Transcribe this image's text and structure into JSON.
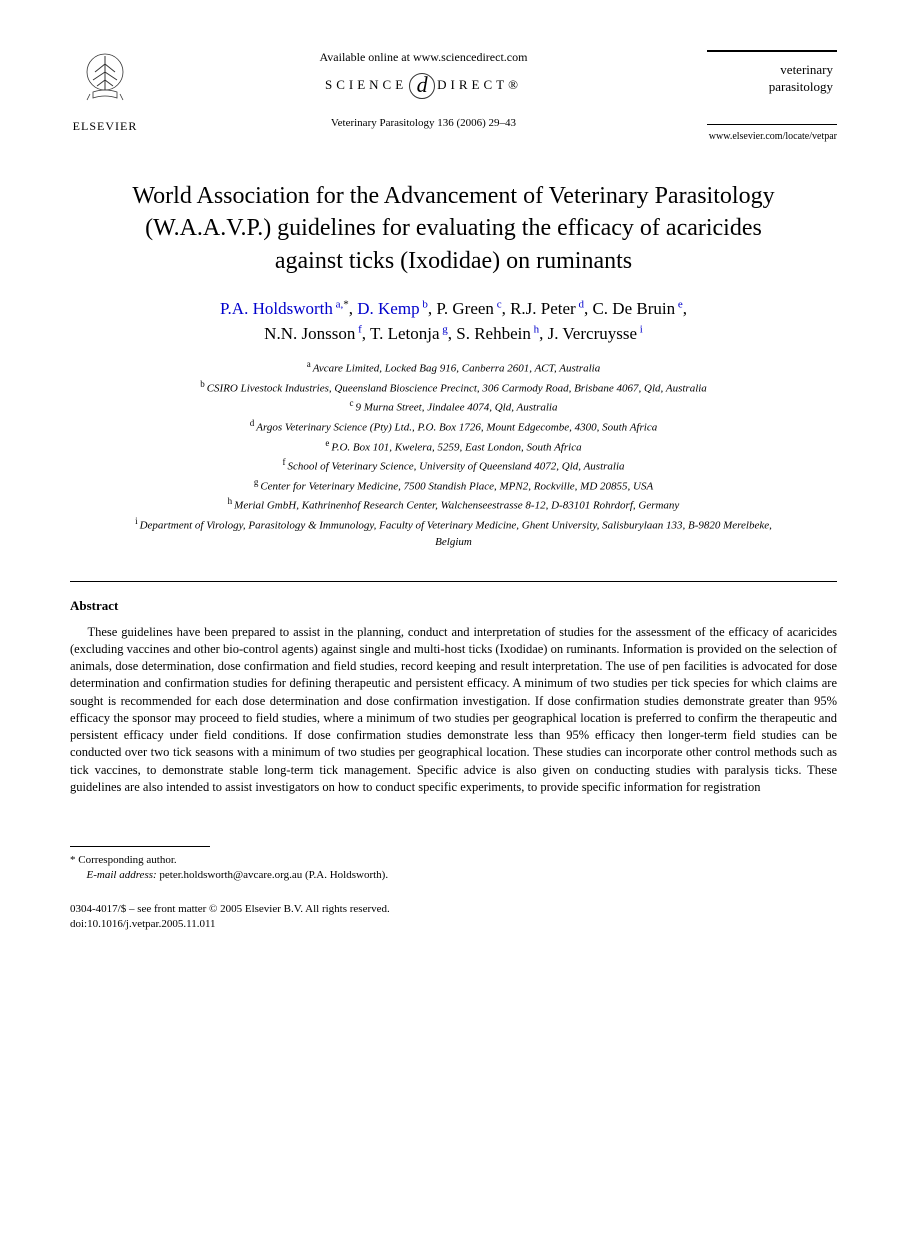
{
  "header": {
    "publisher_name": "ELSEVIER",
    "available_online": "Available online at www.sciencedirect.com",
    "science_direct_left": "SCIENCE",
    "science_direct_right": "DIRECT®",
    "citation": "Veterinary Parasitology 136 (2006) 29–43",
    "journal_name_line1": "veterinary",
    "journal_name_line2": "parasitology",
    "journal_url": "www.elsevier.com/locate/vetpar"
  },
  "title": "World Association for the Advancement of Veterinary Parasitology (W.A.A.V.P.) guidelines for evaluating the efficacy of acaricides against ticks (Ixodidae) on ruminants",
  "authors": [
    {
      "name": "P.A. Holdsworth",
      "aff": "a,",
      "star": "*",
      "link": true
    },
    {
      "name": "D. Kemp",
      "aff": "b",
      "link": true
    },
    {
      "name": "P. Green",
      "aff": "c",
      "link": false
    },
    {
      "name": "R.J. Peter",
      "aff": "d",
      "link": false
    },
    {
      "name": "C. De Bruin",
      "aff": "e",
      "link": false
    },
    {
      "name": "N.N. Jonsson",
      "aff": "f",
      "link": false
    },
    {
      "name": "T. Letonja",
      "aff": "g",
      "link": false
    },
    {
      "name": "S. Rehbein",
      "aff": "h",
      "link": false
    },
    {
      "name": "J. Vercruysse",
      "aff": "i",
      "link": false
    }
  ],
  "affiliations": [
    {
      "sup": "a",
      "text": "Avcare Limited, Locked Bag 916, Canberra 2601, ACT, Australia"
    },
    {
      "sup": "b",
      "text": "CSIRO Livestock Industries, Queensland Bioscience Precinct, 306 Carmody Road, Brisbane 4067, Qld, Australia"
    },
    {
      "sup": "c",
      "text": "9 Murna Street, Jindalee 4074, Qld, Australia"
    },
    {
      "sup": "d",
      "text": "Argos Veterinary Science (Pty) Ltd., P.O. Box 1726, Mount Edgecombe, 4300, South Africa"
    },
    {
      "sup": "e",
      "text": "P.O. Box 101, Kwelera, 5259, East London, South Africa"
    },
    {
      "sup": "f",
      "text": "School of Veterinary Science, University of Queensland 4072, Qld, Australia"
    },
    {
      "sup": "g",
      "text": "Center for Veterinary Medicine, 7500 Standish Place, MPN2, Rockville, MD 20855, USA"
    },
    {
      "sup": "h",
      "text": "Merial GmbH, Kathrinenhof Research Center, Walchenseestrasse 8-12, D-83101 Rohrdorf, Germany"
    },
    {
      "sup": "i",
      "text": "Department of Virology, Parasitology & Immunology, Faculty of Veterinary Medicine, Ghent University, Salisburylaan 133, B-9820 Merelbeke, Belgium"
    }
  ],
  "abstract": {
    "heading": "Abstract",
    "body": "These guidelines have been prepared to assist in the planning, conduct and interpretation of studies for the assessment of the efficacy of acaricides (excluding vaccines and other bio-control agents) against single and multi-host ticks (Ixodidae) on ruminants. Information is provided on the selection of animals, dose determination, dose confirmation and field studies, record keeping and result interpretation. The use of pen facilities is advocated for dose determination and confirmation studies for defining therapeutic and persistent efficacy. A minimum of two studies per tick species for which claims are sought is recommended for each dose determination and dose confirmation investigation. If dose confirmation studies demonstrate greater than 95% efficacy the sponsor may proceed to field studies, where a minimum of two studies per geographical location is preferred to confirm the therapeutic and persistent efficacy under field conditions. If dose confirmation studies demonstrate less than 95% efficacy then longer-term field studies can be conducted over two tick seasons with a minimum of two studies per geographical location. These studies can incorporate other control methods such as tick vaccines, to demonstrate stable long-term tick management. Specific advice is also given on conducting studies with paralysis ticks. These guidelines are also intended to assist investigators on how to conduct specific experiments, to provide specific information for registration"
  },
  "footnote": {
    "corresponding": "* Corresponding author.",
    "email_label": "E-mail address:",
    "email": "peter.holdsworth@avcare.org.au (P.A. Holdsworth)."
  },
  "bottom": {
    "copyright": "0304-4017/$ – see front matter © 2005 Elsevier B.V. All rights reserved.",
    "doi": "doi:10.1016/j.vetpar.2005.11.011"
  }
}
